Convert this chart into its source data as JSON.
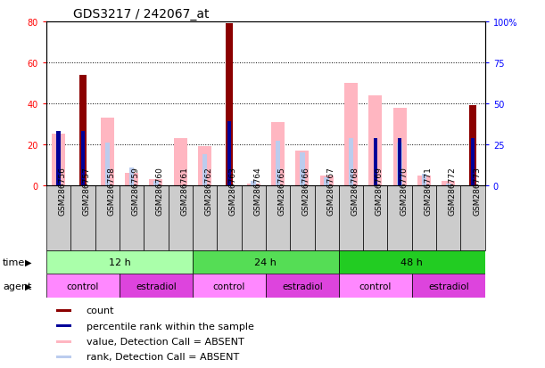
{
  "title": "GDS3217 / 242067_at",
  "samples": [
    "GSM286756",
    "GSM286757",
    "GSM286758",
    "GSM286759",
    "GSM286760",
    "GSM286761",
    "GSM286762",
    "GSM286763",
    "GSM286764",
    "GSM286765",
    "GSM286766",
    "GSM286767",
    "GSM286768",
    "GSM286769",
    "GSM286770",
    "GSM286771",
    "GSM286772",
    "GSM286773"
  ],
  "count_values": [
    0,
    54,
    0,
    0,
    0,
    0,
    0,
    79,
    0,
    0,
    0,
    0,
    0,
    0,
    0,
    0,
    0,
    39
  ],
  "rank_values": [
    33,
    33,
    0,
    0,
    0,
    0,
    0,
    39,
    0,
    0,
    0,
    0,
    0,
    29,
    29,
    0,
    0,
    29
  ],
  "absent_value_values": [
    25,
    0,
    33,
    6,
    3,
    23,
    19,
    0,
    1,
    31,
    17,
    5,
    50,
    44,
    38,
    5,
    2,
    0
  ],
  "absent_rank_values": [
    0,
    0,
    26,
    11,
    3,
    0,
    19,
    0,
    3,
    27,
    20,
    5,
    29,
    0,
    26,
    7,
    1,
    0
  ],
  "ylim_left": [
    0,
    80
  ],
  "ylim_right": [
    0,
    100
  ],
  "yticks_left": [
    0,
    20,
    40,
    60,
    80
  ],
  "yticks_right": [
    0,
    25,
    50,
    75,
    100
  ],
  "ytick_labels_left": [
    "0",
    "20",
    "40",
    "60",
    "80"
  ],
  "ytick_labels_right": [
    "0",
    "25",
    "50",
    "75",
    "100%"
  ],
  "time_groups": [
    {
      "label": "12 h",
      "start": 0,
      "end": 6,
      "color": "#AAFFAA"
    },
    {
      "label": "24 h",
      "start": 6,
      "end": 12,
      "color": "#55DD55"
    },
    {
      "label": "48 h",
      "start": 12,
      "end": 18,
      "color": "#22CC22"
    }
  ],
  "agent_groups": [
    {
      "label": "control",
      "start": 0,
      "end": 3,
      "color": "#FF88FF"
    },
    {
      "label": "estradiol",
      "start": 3,
      "end": 6,
      "color": "#DD44DD"
    },
    {
      "label": "control",
      "start": 6,
      "end": 9,
      "color": "#FF88FF"
    },
    {
      "label": "estradiol",
      "start": 9,
      "end": 12,
      "color": "#DD44DD"
    },
    {
      "label": "control",
      "start": 12,
      "end": 15,
      "color": "#FF88FF"
    },
    {
      "label": "estradiol",
      "start": 15,
      "end": 18,
      "color": "#DD44DD"
    }
  ],
  "color_count": "#8B0000",
  "color_rank": "#000099",
  "color_absent_value": "#FFB6C1",
  "color_absent_rank": "#BBCCEE",
  "background_color": "#FFFFFF",
  "plot_bg": "#FFFFFF",
  "sample_box_color": "#CCCCCC",
  "title_fontsize": 10,
  "tick_fontsize": 7,
  "sample_fontsize": 6.5,
  "row_label_fontsize": 8,
  "legend_fontsize": 8
}
